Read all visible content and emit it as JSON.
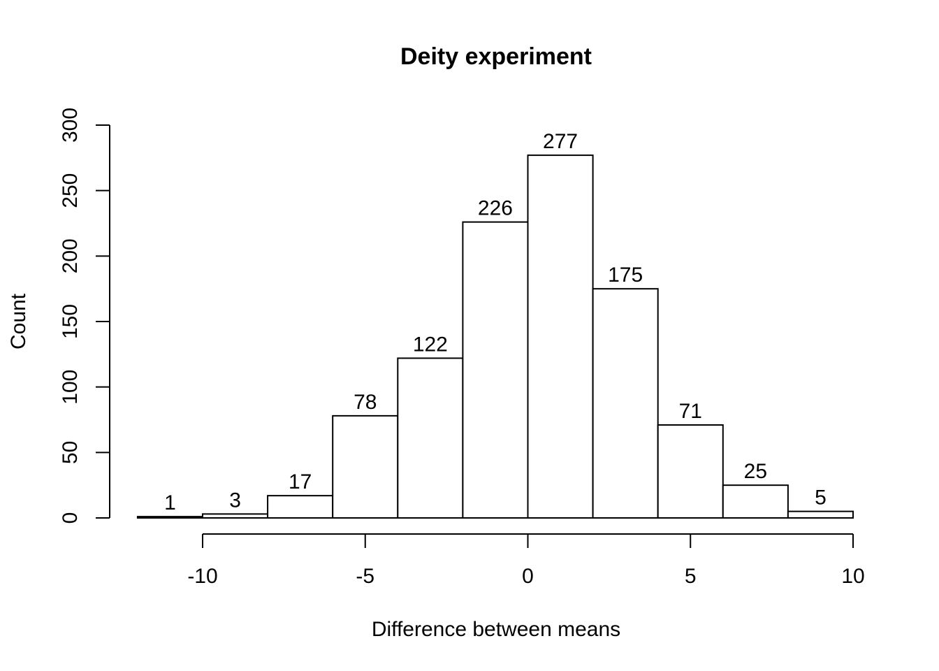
{
  "chart_data": {
    "type": "bar",
    "title": "Deity experiment",
    "xlabel": "Difference between means",
    "ylabel": "Count",
    "bins": [
      {
        "x0": -12,
        "x1": -10,
        "count": 1
      },
      {
        "x0": -10,
        "x1": -8,
        "count": 3
      },
      {
        "x0": -8,
        "x1": -6,
        "count": 17
      },
      {
        "x0": -6,
        "x1": -4,
        "count": 78
      },
      {
        "x0": -4,
        "x1": -2,
        "count": 122
      },
      {
        "x0": -2,
        "x1": 0,
        "count": 226
      },
      {
        "x0": 0,
        "x1": 2,
        "count": 277
      },
      {
        "x0": 2,
        "x1": 4,
        "count": 175
      },
      {
        "x0": 4,
        "x1": 6,
        "count": 71
      },
      {
        "x0": 6,
        "x1": 8,
        "count": 25
      },
      {
        "x0": 8,
        "x1": 10,
        "count": 5
      }
    ],
    "x_ticks": [
      -10,
      -5,
      0,
      5,
      10
    ],
    "y_ticks": [
      0,
      50,
      100,
      150,
      200,
      250,
      300
    ],
    "xlim": [
      -12,
      10
    ],
    "ylim": [
      0,
      300
    ],
    "grid": false,
    "colors": {
      "bar_fill": "#ffffff",
      "bar_stroke": "#000000"
    }
  }
}
